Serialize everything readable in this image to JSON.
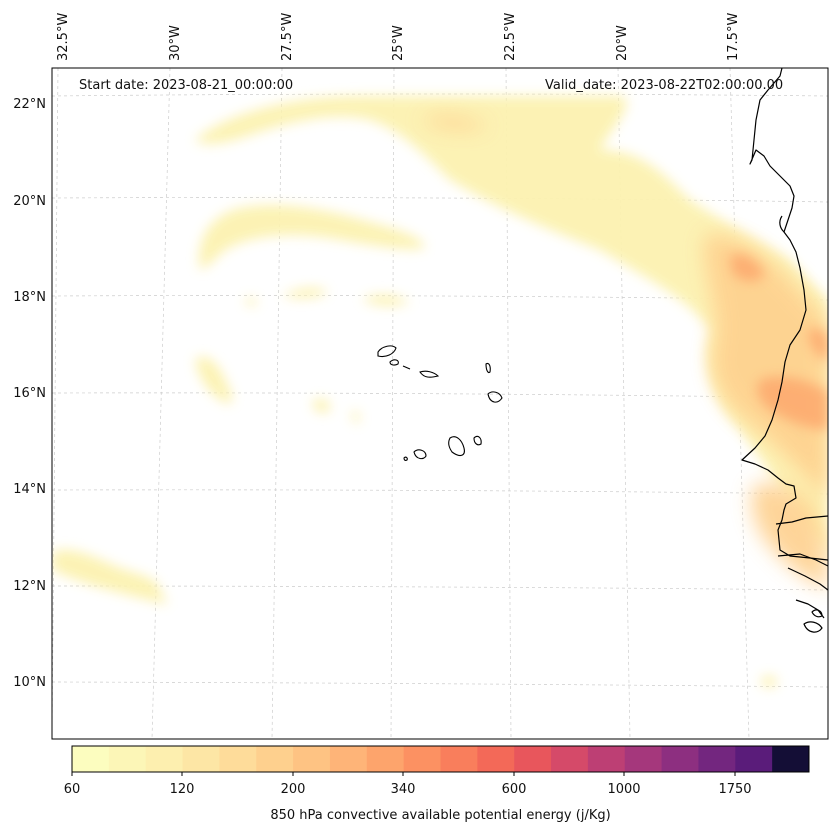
{
  "annotations": {
    "start_date": "Start date: 2023-08-21_00:00:00",
    "valid_date": "Valid_date: 2023-08-22T02:00:00.00"
  },
  "axes": {
    "lat_labels": [
      "22°N",
      "20°N",
      "18°N",
      "16°N",
      "14°N",
      "12°N",
      "10°N"
    ],
    "lon_labels": [
      "32.5°W",
      "30°W",
      "27.5°W",
      "25°W",
      "22.5°W",
      "20°W",
      "17.5°W"
    ]
  },
  "colorbar": {
    "title": "850 hPa convective available potential energy (j/Kg)",
    "tick_labels": [
      "60",
      "120",
      "200",
      "340",
      "600",
      "1000",
      "1750"
    ],
    "colors": [
      "#fcfdbf",
      "#fcf6b7",
      "#fdefaf",
      "#fde6a5",
      "#fedc9a",
      "#fed08e",
      "#fec383",
      "#feb478",
      "#fda46c",
      "#fc9162",
      "#f97e5c",
      "#f36958",
      "#e8565c",
      "#d54a69",
      "#bd3f74",
      "#a5377c",
      "#8d2f80",
      "#73267f",
      "#5a1c7a",
      "#140e36"
    ]
  },
  "map": {
    "region": "Cabo Verde and West African coast",
    "ocean_color": "#ffffff",
    "land_outline_color": "#000000"
  }
}
